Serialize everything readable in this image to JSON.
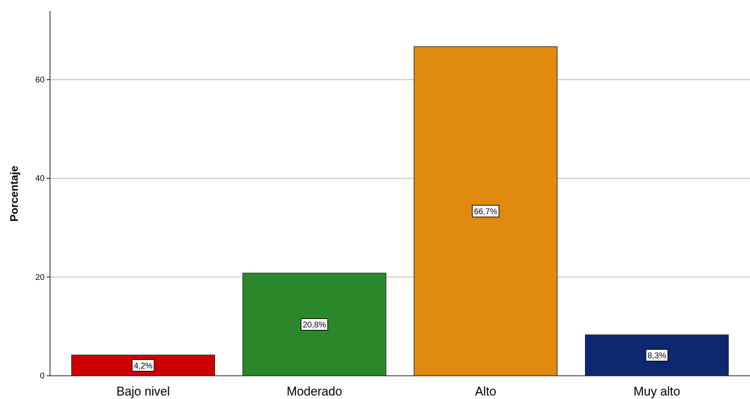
{
  "chart_data": {
    "type": "bar",
    "title": "",
    "xlabel": "",
    "ylabel": "Porcentaje",
    "ylim": [
      0,
      73
    ],
    "yticks": [
      "0",
      "20",
      "40",
      "60"
    ],
    "grid": true,
    "categories": [
      "Bajo nivel",
      "Moderado",
      "Alto",
      "Muy alto"
    ],
    "values": [
      4.2,
      20.8,
      66.7,
      8.3
    ],
    "data_labels": [
      "4,2%",
      "20,8%",
      "66,7%",
      "8,3%"
    ],
    "colors": [
      "#cc0000",
      "#2a882a",
      "#e08a10",
      "#0d2870"
    ]
  }
}
